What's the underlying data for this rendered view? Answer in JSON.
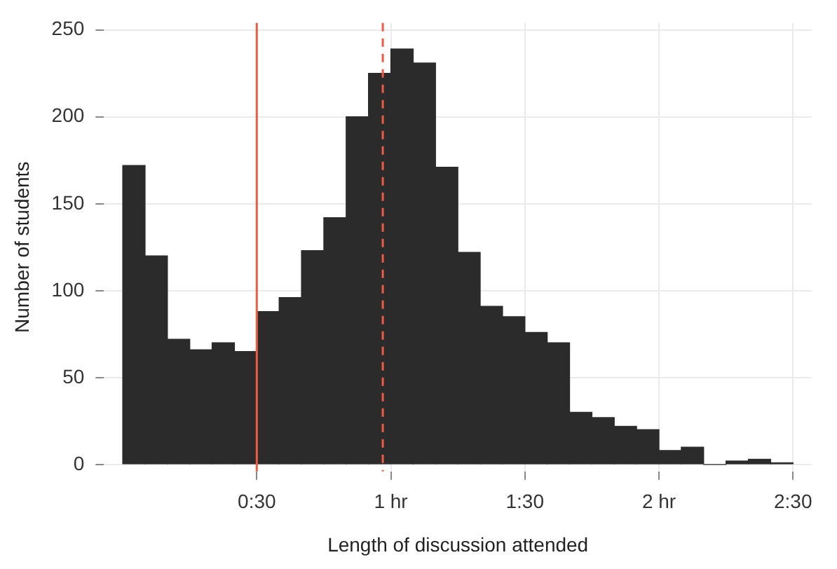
{
  "chart_data": {
    "type": "histogram",
    "xlabel": "Length of discussion attended",
    "ylabel": "Number of students",
    "bins": [
      0,
      0.0833,
      0.1667,
      0.25,
      0.3333,
      0.4167,
      0.5,
      0.5833,
      0.6667,
      0.75,
      0.8333,
      0.9167,
      1,
      1.0833,
      1.1667,
      1.25,
      1.3333,
      1.4167,
      1.5,
      1.5833,
      1.6667,
      1.75,
      1.8333,
      1.9167,
      2,
      2.0833,
      2.1667,
      2.25,
      2.3333,
      2.4167,
      2.5
    ],
    "values": [
      172,
      120,
      72,
      66,
      70,
      65,
      88,
      96,
      123,
      142,
      200,
      225,
      239,
      231,
      171,
      122,
      91,
      85,
      76,
      70,
      30,
      27,
      22,
      20,
      8,
      10,
      0,
      2,
      3,
      1
    ],
    "color": "#2b2b2b",
    "xlim": [
      -0.07,
      2.57
    ],
    "xticks": [
      {
        "value": 0.5,
        "label": "0:30"
      },
      {
        "value": 1,
        "label": "1 hr"
      },
      {
        "value": 1.5,
        "label": "1:30"
      },
      {
        "value": 2,
        "label": "2 hr"
      },
      {
        "value": 2.5,
        "label": "2:30"
      }
    ],
    "ylim": [
      -4,
      254
    ],
    "yticks": [
      0,
      50,
      100,
      150,
      200,
      250
    ],
    "ref_lines": [
      {
        "axis": "x",
        "value": 0.5,
        "color": "#ef5b45",
        "line_style": "solid"
      },
      {
        "axis": "x",
        "value": 0.97,
        "color": "#ef5b45",
        "line_style": "dashed"
      }
    ],
    "grid": true,
    "legend": false
  }
}
